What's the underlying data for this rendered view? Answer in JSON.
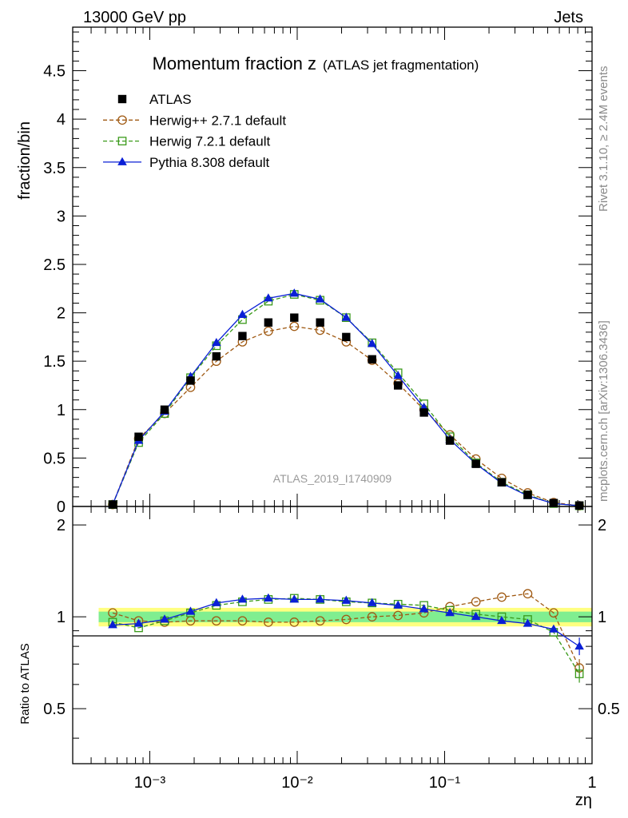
{
  "header": {
    "energy_label": "13000 GeV pp",
    "process_label": "Jets"
  },
  "side_text": {
    "rivet": "Rivet 3.1.10, ≥ 2.4M events",
    "mcplots": "mcplots.cern.ch [arXiv:1306.3436]"
  },
  "colors": {
    "atlas": "#000000",
    "herwigpp": "#a05a13",
    "herwig7": "#3a9a1a",
    "pythia": "#0a1fd6",
    "band_outer": "#ffff80",
    "band_inner": "#80ee90"
  },
  "chart_data": [
    {
      "type": "scatter",
      "panel": "main",
      "title": "Momentum fraction z",
      "subtitle": "(ATLAS jet fragmentation)",
      "xlabel": "zη",
      "ylabel": "fraction/bin",
      "xscale": "log",
      "xlim": [
        0.0003,
        1
      ],
      "ylim": [
        0,
        4.95
      ],
      "yticks": [
        0,
        0.5,
        1,
        1.5,
        2,
        2.5,
        3,
        3.5,
        4,
        4.5
      ],
      "ytick_labels": [
        "0",
        "0.5",
        "1",
        "1.5",
        "2",
        "2.5",
        "3",
        "3.5",
        "4",
        "4.5"
      ],
      "xticks": [
        0.001,
        0.01,
        0.1,
        1
      ],
      "xtick_labels": [
        "10⁻³",
        "10⁻²",
        "10⁻¹",
        "1"
      ],
      "legend_position": "top-left",
      "watermark": "ATLAS_2019_I1740909",
      "x": [
        0.00056,
        0.00084,
        0.00126,
        0.00189,
        0.00283,
        0.00425,
        0.00637,
        0.00955,
        0.0143,
        0.0215,
        0.0322,
        0.0483,
        0.0724,
        0.1086,
        0.163,
        0.244,
        0.366,
        0.549,
        0.82
      ],
      "series": [
        {
          "name": "ATLAS",
          "marker": "square-filled",
          "line": "none",
          "values": [
            0.02,
            0.72,
            1.0,
            1.3,
            1.55,
            1.76,
            1.9,
            1.95,
            1.9,
            1.75,
            1.52,
            1.25,
            0.97,
            0.68,
            0.44,
            0.25,
            0.12,
            0.035,
            0.01
          ]
        },
        {
          "name": "Herwig++ 2.7.1 default",
          "marker": "circle-open",
          "line": "dashed",
          "values": [
            0.02,
            0.7,
            0.96,
            1.23,
            1.5,
            1.7,
            1.81,
            1.86,
            1.82,
            1.7,
            1.51,
            1.27,
            1.0,
            0.74,
            0.49,
            0.29,
            0.14,
            0.04,
            0.007
          ]
        },
        {
          "name": "Herwig 7.2.1 default",
          "marker": "square-open",
          "line": "dashed",
          "values": [
            0.02,
            0.66,
            0.96,
            1.33,
            1.66,
            1.93,
            2.12,
            2.19,
            2.13,
            1.95,
            1.69,
            1.38,
            1.06,
            0.72,
            0.45,
            0.25,
            0.12,
            0.03,
            0.007
          ]
        },
        {
          "name": "Pythia 8.308 default",
          "marker": "triangle-filled",
          "line": "solid",
          "values": [
            0.02,
            0.68,
            0.98,
            1.34,
            1.69,
            1.98,
            2.15,
            2.2,
            2.14,
            1.95,
            1.68,
            1.35,
            1.02,
            0.69,
            0.44,
            0.24,
            0.11,
            0.03,
            0.008
          ]
        }
      ]
    },
    {
      "type": "line",
      "panel": "ratio",
      "ylabel": "Ratio to ATLAS",
      "xscale": "log",
      "ylim": [
        0.33,
        2.3
      ],
      "yticks": [
        0.5,
        1,
        2
      ],
      "ytick_labels": [
        "0.5",
        "1",
        "2"
      ],
      "reference_line": 1,
      "band_outer": [
        0.93,
        1.07
      ],
      "band_inner": [
        0.96,
        1.04
      ],
      "x": [
        0.00056,
        0.00084,
        0.00126,
        0.00189,
        0.00283,
        0.00425,
        0.00637,
        0.00955,
        0.0143,
        0.0215,
        0.0322,
        0.0483,
        0.0724,
        0.1086,
        0.163,
        0.244,
        0.366,
        0.549,
        0.82
      ],
      "series": [
        {
          "name": "Herwig++ 2.7.1 default",
          "marker": "circle-open",
          "line": "dashed",
          "values": [
            1.03,
            0.97,
            0.96,
            0.97,
            0.97,
            0.97,
            0.96,
            0.96,
            0.97,
            0.98,
            1.0,
            1.01,
            1.03,
            1.08,
            1.12,
            1.16,
            1.19,
            1.03,
            0.68
          ]
        },
        {
          "name": "Herwig 7.2.1 default",
          "marker": "square-open",
          "line": "dashed",
          "values": [
            0.96,
            0.92,
            0.97,
            1.03,
            1.09,
            1.12,
            1.14,
            1.15,
            1.14,
            1.12,
            1.11,
            1.1,
            1.09,
            1.05,
            1.02,
            1.0,
            0.98,
            0.89,
            0.65
          ]
        },
        {
          "name": "Pythia 8.308 default",
          "marker": "triangle-filled",
          "line": "solid",
          "values": [
            0.94,
            0.95,
            0.98,
            1.04,
            1.11,
            1.14,
            1.15,
            1.14,
            1.14,
            1.13,
            1.11,
            1.09,
            1.06,
            1.03,
            1.0,
            0.97,
            0.95,
            0.91,
            0.8
          ]
        }
      ]
    }
  ]
}
